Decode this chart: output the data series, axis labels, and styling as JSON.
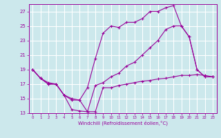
{
  "title": "",
  "xlabel": "Windchill (Refroidissement éolien,°C)",
  "ylabel": "",
  "bg_color": "#cce8ec",
  "line_color": "#990099",
  "grid_color": "#ffffff",
  "xlim": [
    -0.5,
    23.5
  ],
  "ylim": [
    13,
    28
  ],
  "yticks": [
    13,
    15,
    17,
    19,
    21,
    23,
    25,
    27
  ],
  "xticks": [
    0,
    1,
    2,
    3,
    4,
    5,
    6,
    7,
    8,
    9,
    10,
    11,
    12,
    13,
    14,
    15,
    16,
    17,
    18,
    19,
    20,
    21,
    22,
    23
  ],
  "series": [
    {
      "x": [
        0,
        1,
        2,
        3,
        4,
        5,
        6,
        7,
        8,
        9,
        10,
        11,
        12,
        13,
        14,
        15,
        16,
        17,
        18,
        19,
        20,
        21,
        22,
        23
      ],
      "y": [
        19.0,
        17.8,
        17.0,
        17.0,
        15.5,
        14.8,
        14.8,
        16.5,
        20.5,
        24.0,
        25.0,
        24.8,
        25.5,
        25.5,
        26.0,
        27.0,
        27.0,
        27.5,
        27.8,
        25.0,
        23.5,
        19.0,
        18.0,
        18.0
      ]
    },
    {
      "x": [
        0,
        1,
        2,
        3,
        4,
        5,
        6,
        7,
        8,
        9,
        10,
        11,
        12,
        13,
        14,
        15,
        16,
        17,
        18,
        19,
        20,
        21,
        22,
        23
      ],
      "y": [
        19.0,
        17.8,
        17.0,
        17.0,
        15.5,
        13.5,
        13.3,
        13.2,
        13.2,
        16.5,
        16.5,
        16.8,
        17.0,
        17.2,
        17.4,
        17.5,
        17.7,
        17.8,
        18.0,
        18.2,
        18.2,
        18.3,
        18.2,
        18.0
      ]
    },
    {
      "x": [
        0,
        1,
        2,
        3,
        4,
        5,
        6,
        7,
        8,
        9,
        10,
        11,
        12,
        13,
        14,
        15,
        16,
        17,
        18,
        19,
        20,
        21,
        22,
        23
      ],
      "y": [
        19.0,
        17.8,
        17.2,
        17.0,
        15.5,
        15.0,
        14.8,
        13.2,
        16.8,
        17.2,
        18.0,
        18.5,
        19.5,
        20.0,
        21.0,
        22.0,
        23.0,
        24.5,
        25.0,
        25.0,
        23.5,
        19.0,
        18.0,
        18.0
      ]
    }
  ]
}
